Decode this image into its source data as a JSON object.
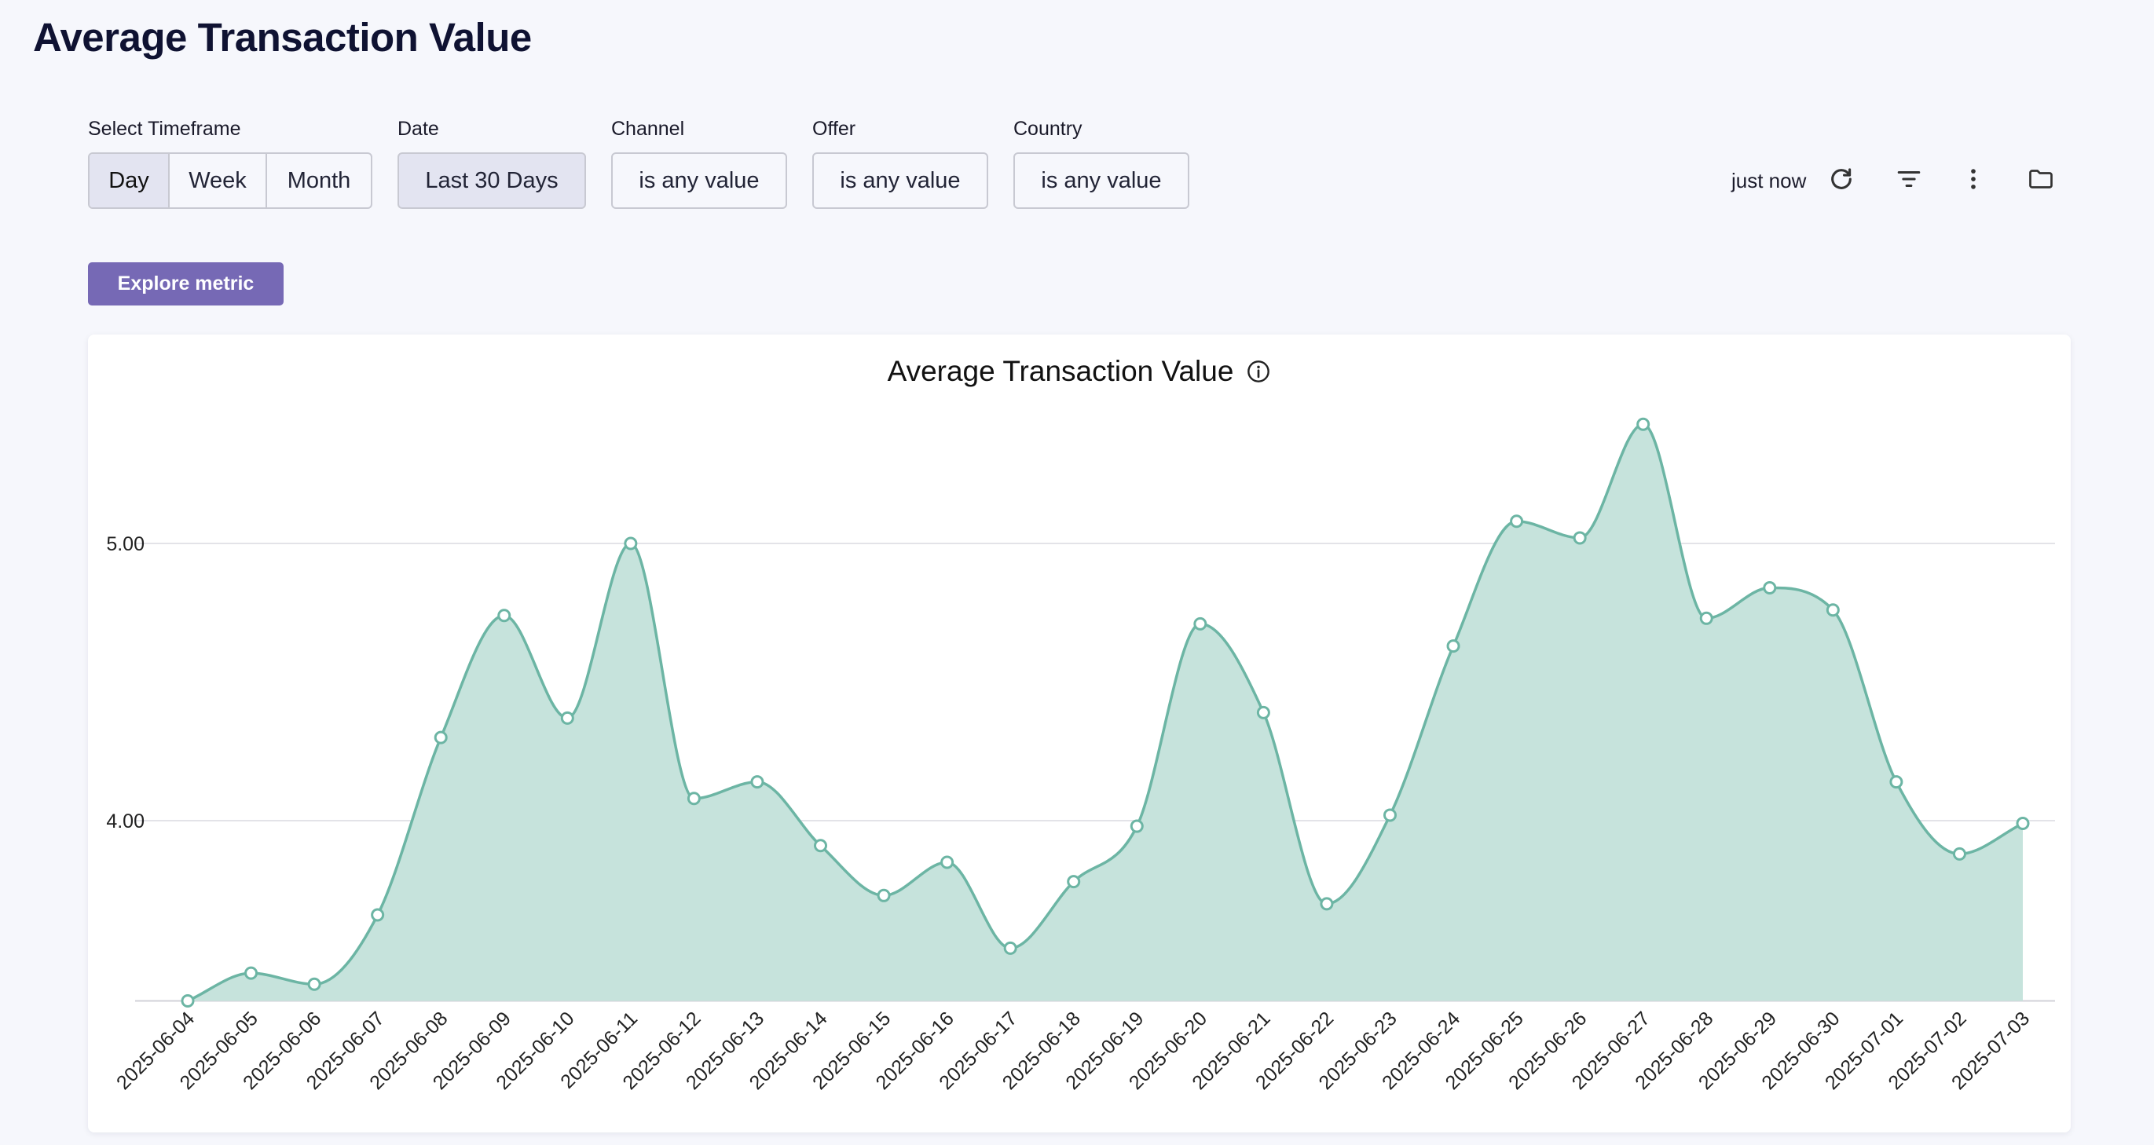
{
  "page": {
    "title": "Average Transaction Value"
  },
  "filters": {
    "timeframe": {
      "label": "Select Timeframe",
      "options": [
        "Day",
        "Week",
        "Month"
      ],
      "selected": "Day"
    },
    "date": {
      "label": "Date",
      "value": "Last 30 Days"
    },
    "channel": {
      "label": "Channel",
      "value": "is any value"
    },
    "offer": {
      "label": "Offer",
      "value": "is any value"
    },
    "country": {
      "label": "Country",
      "value": "is any value"
    }
  },
  "toolbar": {
    "status": "just now",
    "icons": [
      "refresh-icon",
      "filter-icon",
      "more-vert-icon",
      "folder-icon"
    ]
  },
  "actions": {
    "explore_label": "Explore metric"
  },
  "colors": {
    "accent": "#7669b5",
    "line": "#6cb5a4",
    "fill": "#c6e3dc"
  },
  "chart_data": {
    "type": "area",
    "title": "Average Transaction Value",
    "xlabel": "",
    "ylabel": "",
    "grid": true,
    "ylim": [
      3.35,
      5.5
    ],
    "yticks": [
      4.0,
      5.0
    ],
    "ytick_labels": [
      "4.00",
      "5.00"
    ],
    "categories": [
      "2025-06-04",
      "2025-06-05",
      "2025-06-06",
      "2025-06-07",
      "2025-06-08",
      "2025-06-09",
      "2025-06-10",
      "2025-06-11",
      "2025-06-12",
      "2025-06-13",
      "2025-06-14",
      "2025-06-15",
      "2025-06-16",
      "2025-06-17",
      "2025-06-18",
      "2025-06-19",
      "2025-06-20",
      "2025-06-21",
      "2025-06-22",
      "2025-06-23",
      "2025-06-24",
      "2025-06-25",
      "2025-06-26",
      "2025-06-27",
      "2025-06-28",
      "2025-06-29",
      "2025-06-30",
      "2025-07-01",
      "2025-07-02",
      "2025-07-03"
    ],
    "series": [
      {
        "values": [
          3.35,
          3.45,
          3.41,
          3.66,
          4.3,
          4.74,
          4.37,
          5.0,
          4.08,
          4.14,
          3.91,
          3.73,
          3.85,
          3.54,
          3.78,
          3.98,
          4.71,
          4.39,
          3.7,
          4.02,
          4.63,
          5.08,
          5.02,
          5.43,
          4.73,
          4.84,
          4.76,
          4.14,
          3.88,
          3.99
        ]
      }
    ]
  }
}
